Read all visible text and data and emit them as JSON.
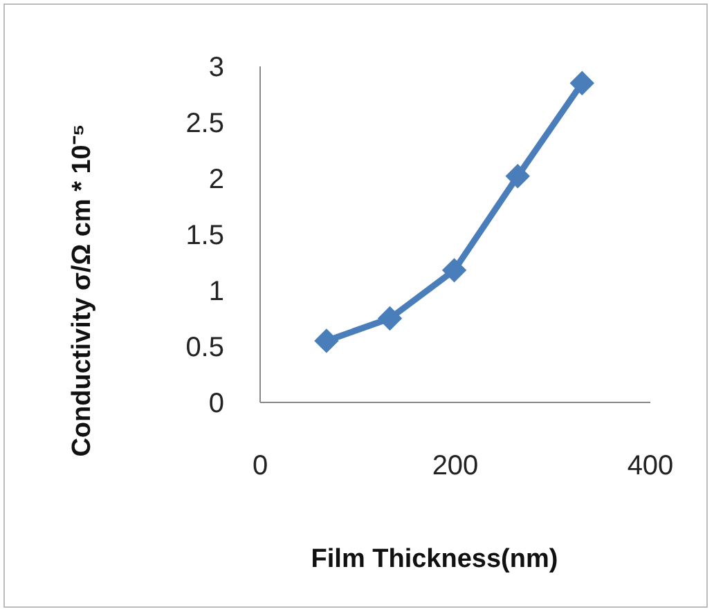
{
  "chart_data": {
    "type": "line",
    "xlabel": "Film Thickness(nm)",
    "ylabel": "Conductivity σ/Ω cm * 10⁻⁵",
    "x": [
      68,
      133,
      199,
      264,
      330
    ],
    "series": [
      {
        "color": "#4a7ebb",
        "values": [
          0.55,
          0.75,
          1.18,
          2.02,
          2.85
        ]
      }
    ],
    "xlim": [
      0,
      400
    ],
    "xticks": [
      0,
      200,
      400
    ],
    "ylim": [
      0,
      3
    ],
    "yticks": [
      0,
      0.5,
      1,
      1.5,
      2,
      2.5,
      3
    ],
    "marker": "diamond",
    "line_style": "solid"
  }
}
